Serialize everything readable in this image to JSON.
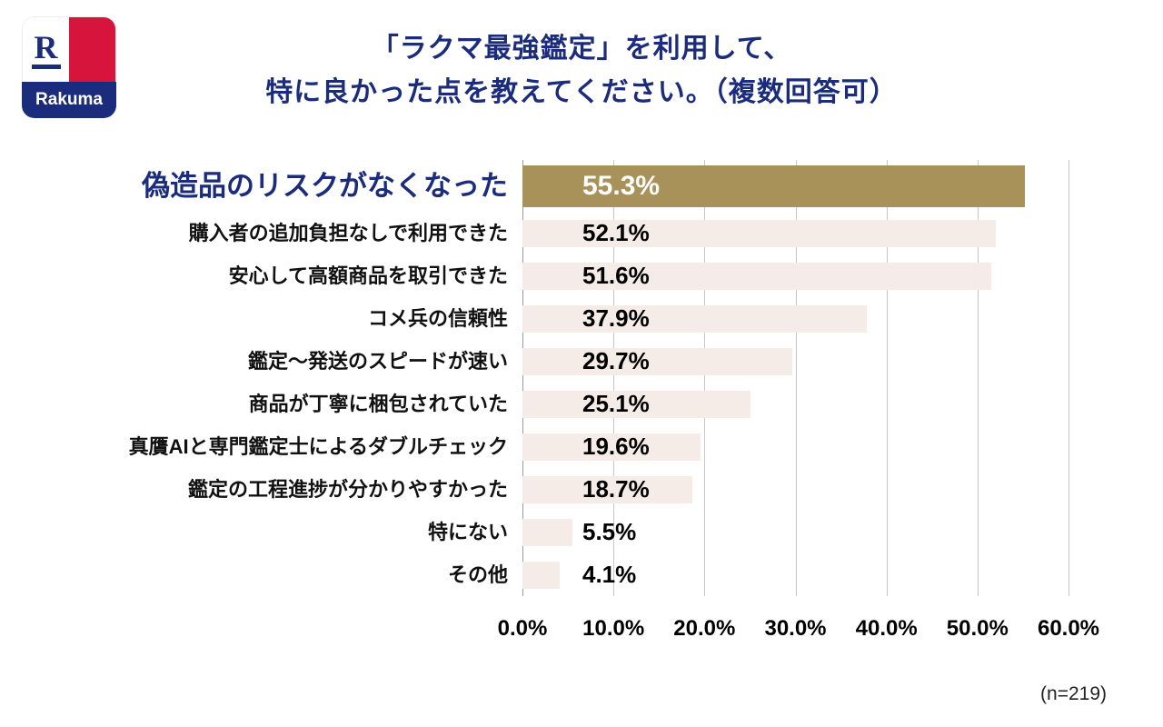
{
  "logo": {
    "r_letter": "R",
    "brand": "Rakuma"
  },
  "title": {
    "line1": "「ラクマ最強鑑定」を利用して、",
    "line2": "特に良かった点を教えてください。（複数回答可）"
  },
  "footnote": "(n=219)",
  "colors": {
    "title": "#1b2c7c",
    "highlight_bar": "#a9925a",
    "bar": "#f5ece8",
    "grid": "#c9c9c9",
    "logo_red": "#d6143c"
  },
  "chart_data": {
    "type": "bar",
    "orientation": "horizontal",
    "title": "「ラクマ最強鑑定」を利用して、特に良かった点を教えてください。（複数回答可）",
    "categories": [
      "偽造品のリスクがなくなった",
      "購入者の追加負担なしで利用できた",
      "安心して高額商品を取引できた",
      "コメ兵の信頼性",
      "鑑定〜発送のスピードが速い",
      "商品が丁寧に梱包されていた",
      "真贋AIと専門鑑定士によるダブルチェック",
      "鑑定の工程進捗が分かりやすかった",
      "特にない",
      "その他"
    ],
    "values": [
      55.3,
      52.1,
      51.6,
      37.9,
      29.7,
      25.1,
      19.6,
      18.7,
      5.5,
      4.1
    ],
    "value_labels": [
      "55.3%",
      "52.1%",
      "51.6%",
      "37.9%",
      "29.7%",
      "25.1%",
      "19.6%",
      "18.7%",
      "5.5%",
      "4.1%"
    ],
    "highlight_index": 0,
    "xlim": [
      0,
      60
    ],
    "x_ticks": [
      "0.0%",
      "10.0%",
      "20.0%",
      "30.0%",
      "40.0%",
      "50.0%",
      "60.0%"
    ],
    "grid": true,
    "legend": false,
    "n": 219
  }
}
